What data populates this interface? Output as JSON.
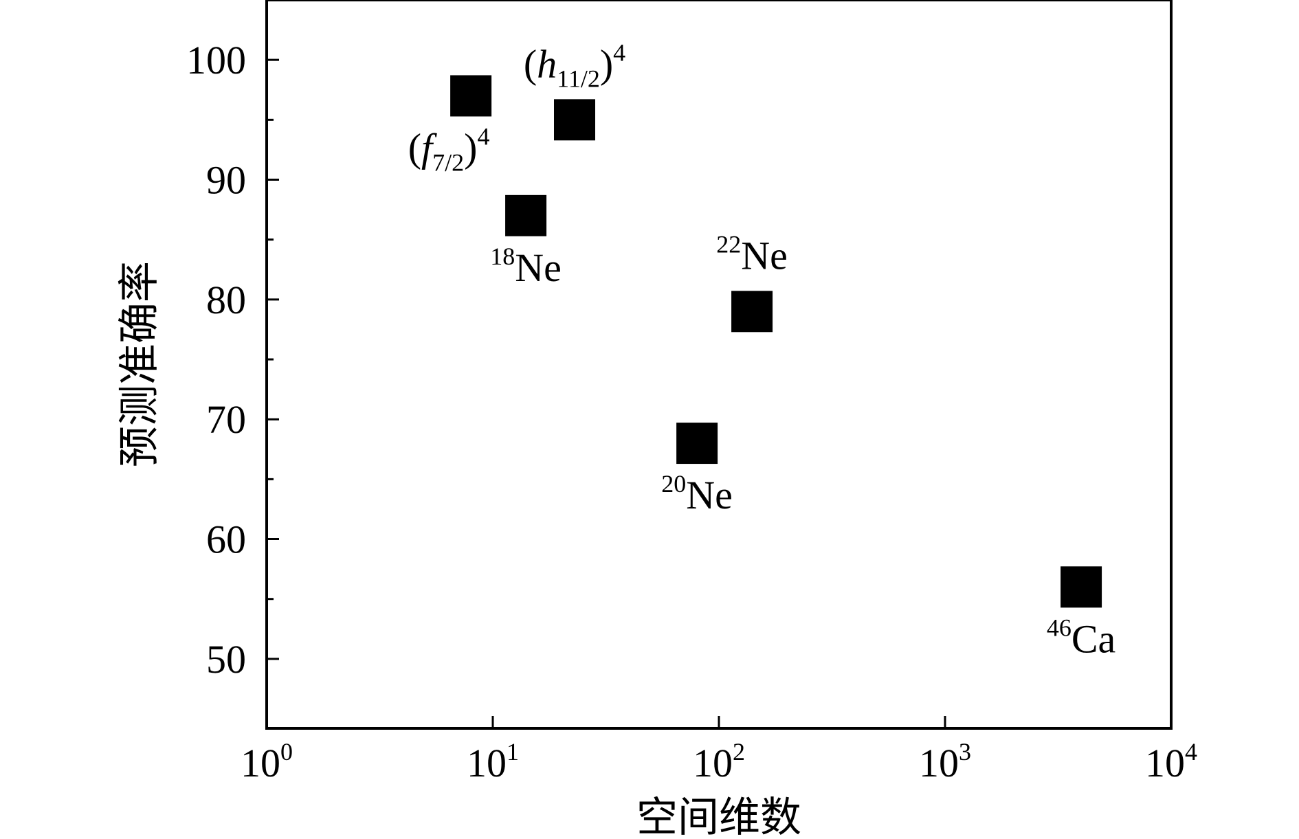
{
  "chart_data": {
    "type": "scatter",
    "xscale": "log",
    "xlim": [
      1,
      10000
    ],
    "ylim": [
      44.2,
      105.0
    ],
    "xlabel": "空间维数",
    "ylabel": "预测准确率",
    "marker": "square",
    "marker_color": "#000000",
    "x_ticks": [
      {
        "value": 1,
        "base": "10",
        "exp": "0"
      },
      {
        "value": 10,
        "base": "10",
        "exp": "1"
      },
      {
        "value": 100,
        "base": "10",
        "exp": "2"
      },
      {
        "value": 1000,
        "base": "10",
        "exp": "3"
      },
      {
        "value": 10000,
        "base": "10",
        "exp": "4"
      }
    ],
    "y_ticks": [
      50,
      60,
      70,
      80,
      90,
      100
    ],
    "y_minor_ticks": [
      55,
      65,
      75,
      85,
      95
    ],
    "points": [
      {
        "id": "f72",
        "x": 8,
        "y": 97,
        "label_pos": "below-left",
        "label": [
          {
            "t": "(",
            "s": "n"
          },
          {
            "t": "f",
            "s": "i"
          },
          {
            "t": "7/2",
            "s": "sub"
          },
          {
            "t": ")",
            "s": "n"
          },
          {
            "t": "4",
            "s": "sup"
          }
        ]
      },
      {
        "id": "h112",
        "x": 23,
        "y": 95,
        "label_pos": "above",
        "label": [
          {
            "t": "(",
            "s": "n"
          },
          {
            "t": "h",
            "s": "i"
          },
          {
            "t": "11/2",
            "s": "sub"
          },
          {
            "t": ")",
            "s": "n"
          },
          {
            "t": "4",
            "s": "sup"
          }
        ]
      },
      {
        "id": "ne18",
        "x": 14,
        "y": 87,
        "label_pos": "below",
        "label": [
          {
            "t": "18",
            "s": "sup"
          },
          {
            "t": "Ne",
            "s": "n"
          }
        ]
      },
      {
        "id": "ne22",
        "x": 140,
        "y": 79,
        "label_pos": "above",
        "label": [
          {
            "t": "22",
            "s": "sup"
          },
          {
            "t": "Ne",
            "s": "n"
          }
        ]
      },
      {
        "id": "ne20",
        "x": 80,
        "y": 68,
        "label_pos": "below",
        "label": [
          {
            "t": "20",
            "s": "sup"
          },
          {
            "t": "Ne",
            "s": "n"
          }
        ]
      },
      {
        "id": "ca46",
        "x": 4000,
        "y": 56,
        "label_pos": "below",
        "label": [
          {
            "t": "46",
            "s": "sup"
          },
          {
            "t": "Ca",
            "s": "n"
          }
        ]
      }
    ]
  }
}
